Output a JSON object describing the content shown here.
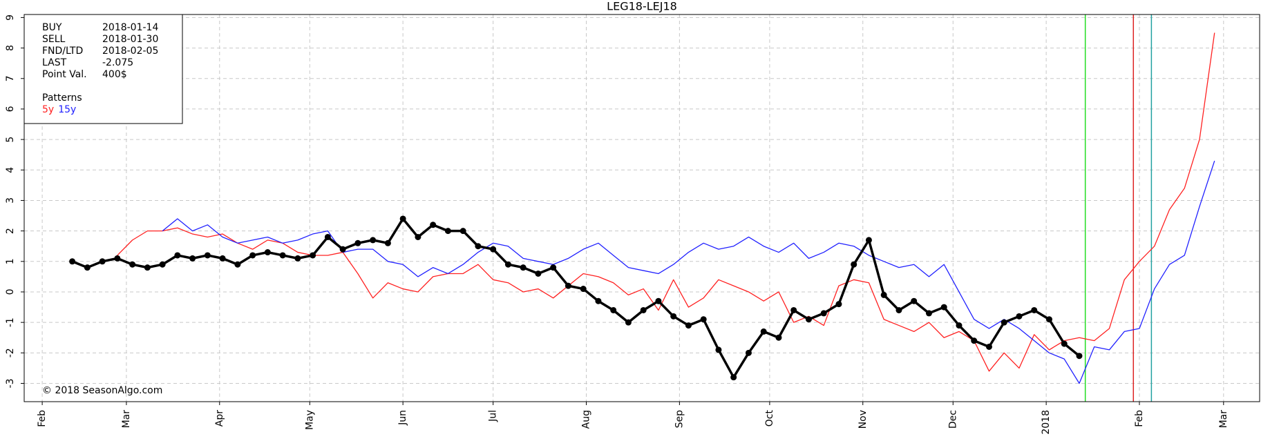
{
  "chart_data": {
    "type": "line",
    "title": "LEG18-LEJ18",
    "x": [
      5,
      10,
      15,
      20,
      25,
      30,
      35,
      40,
      45,
      50,
      55,
      60,
      65,
      70,
      75,
      80,
      85,
      90,
      95,
      100,
      105,
      110,
      115,
      120,
      125,
      130,
      135,
      140,
      145,
      150,
      155,
      160,
      165,
      170,
      175,
      180,
      185,
      190,
      195,
      200,
      205,
      210,
      215,
      220,
      225,
      230,
      235,
      240,
      245,
      250,
      255,
      260,
      265,
      270,
      275,
      280,
      285,
      290,
      295,
      300,
      305,
      310,
      315,
      320,
      325,
      330,
      335,
      340,
      345,
      350,
      355,
      360,
      365,
      370,
      375,
      380,
      385,
      390
    ],
    "series": [
      {
        "color": "#000000",
        "markers": true,
        "values": [
          null,
          1.0,
          0.8,
          1.0,
          1.1,
          0.9,
          0.8,
          0.9,
          1.2,
          1.1,
          1.2,
          1.1,
          0.9,
          1.2,
          1.3,
          1.2,
          1.1,
          1.2,
          1.8,
          1.4,
          1.6,
          1.7,
          1.6,
          2.4,
          1.8,
          2.2,
          2.0,
          2.0,
          1.5,
          1.4,
          0.9,
          0.8,
          0.6,
          0.8,
          0.2,
          0.1,
          -0.3,
          -0.6,
          -1.0,
          -0.6,
          -0.3,
          -0.8,
          -1.1,
          -0.9,
          -1.9,
          -2.8,
          -2.0,
          -1.3,
          -1.5,
          -0.6,
          -0.9,
          -0.7,
          -0.4,
          0.9,
          1.7,
          -0.1,
          -0.6,
          -0.3,
          -0.7,
          -0.5,
          -1.1,
          -1.6,
          -1.8,
          -1.0,
          -0.8,
          -0.6,
          -0.9,
          -1.7,
          -2.1,
          null,
          null,
          null,
          null,
          null,
          null,
          null,
          null,
          null
        ]
      },
      {
        "name": "5y",
        "color": "#ff2020",
        "values": [
          null,
          null,
          null,
          null,
          1.2,
          1.7,
          2.0,
          2.0,
          2.1,
          1.9,
          1.8,
          1.9,
          1.6,
          1.4,
          1.7,
          1.6,
          1.3,
          1.2,
          1.2,
          1.3,
          0.6,
          -0.2,
          0.3,
          0.1,
          0.0,
          0.5,
          0.6,
          0.6,
          0.9,
          0.4,
          0.3,
          0.0,
          0.1,
          -0.2,
          0.2,
          0.6,
          0.5,
          0.3,
          -0.1,
          0.1,
          -0.6,
          0.4,
          -0.5,
          -0.2,
          0.4,
          0.2,
          0.0,
          -0.3,
          0.0,
          -1.0,
          -0.8,
          -1.1,
          0.2,
          0.4,
          0.3,
          -0.9,
          -1.1,
          -1.3,
          -1.0,
          -1.5,
          -1.3,
          -1.6,
          -2.6,
          -2.0,
          -2.5,
          -1.4,
          -1.9,
          -1.6,
          -1.5,
          -1.6,
          -1.2,
          0.4,
          1.0,
          1.5,
          2.7,
          3.4,
          5.0,
          8.5
        ]
      },
      {
        "name": "15y",
        "color": "#2020ff",
        "values": [
          null,
          null,
          null,
          null,
          null,
          null,
          null,
          2.0,
          2.4,
          2.0,
          2.2,
          1.8,
          1.6,
          1.7,
          1.8,
          1.6,
          1.7,
          1.9,
          2.0,
          1.3,
          1.4,
          1.4,
          1.0,
          0.9,
          0.5,
          0.8,
          0.6,
          0.9,
          1.3,
          1.6,
          1.5,
          1.1,
          1.0,
          0.9,
          1.1,
          1.4,
          1.6,
          1.2,
          0.8,
          0.7,
          0.6,
          0.9,
          1.3,
          1.6,
          1.4,
          1.5,
          1.8,
          1.5,
          1.3,
          1.6,
          1.1,
          1.3,
          1.6,
          1.5,
          1.2,
          1.0,
          0.8,
          0.9,
          0.5,
          0.9,
          0.0,
          -0.9,
          -1.2,
          -0.9,
          -1.2,
          -1.6,
          -2.0,
          -2.2,
          -3.0,
          -1.8,
          -1.9,
          -1.3,
          -1.2,
          0.1,
          0.9,
          1.2,
          2.8,
          4.3
        ]
      }
    ],
    "xlim": [
      -6,
      405
    ],
    "xticks": [
      {
        "value": 0,
        "label": "Feb"
      },
      {
        "value": 28,
        "label": "Mar"
      },
      {
        "value": 59,
        "label": "Apr"
      },
      {
        "value": 89,
        "label": "May"
      },
      {
        "value": 120,
        "label": "Jun"
      },
      {
        "value": 150,
        "label": "Jul"
      },
      {
        "value": 181,
        "label": "Aug"
      },
      {
        "value": 212,
        "label": "Sep"
      },
      {
        "value": 242,
        "label": "Oct"
      },
      {
        "value": 273,
        "label": "Nov"
      },
      {
        "value": 303,
        "label": "Dec"
      },
      {
        "value": 334,
        "label": "2018"
      },
      {
        "value": 365,
        "label": "Feb"
      },
      {
        "value": 393,
        "label": "Mar"
      }
    ],
    "ylim": [
      -3.6,
      9.1
    ],
    "yticks": [
      -3,
      -2,
      {
        "value": -1,
        "label": "-1"
      },
      0,
      1,
      2,
      3,
      4,
      5,
      6,
      7,
      8,
      9
    ],
    "grid": true,
    "events": [
      {
        "label": "BUY",
        "date": "2018-01-14",
        "x": 347,
        "color": "#22dd22"
      },
      {
        "label": "SELL",
        "date": "2018-01-30",
        "x": 363,
        "color": "#dd2222"
      },
      {
        "label": "FND/LTD",
        "date": "2018-02-05",
        "x": 369,
        "color": "#20a0a0"
      }
    ],
    "info": [
      {
        "label": "LAST",
        "value": "-2.075"
      },
      {
        "label": "Point Val.",
        "value": "400$"
      }
    ],
    "patterns_title": "Patterns",
    "copyright": "© 2018 SeasonAlgo.com"
  }
}
